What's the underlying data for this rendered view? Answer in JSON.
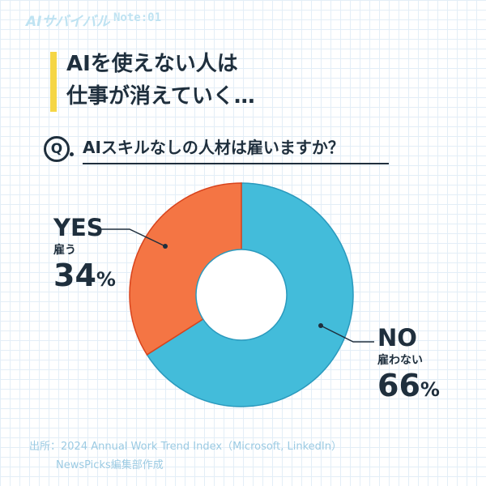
{
  "brand": {
    "name": "AIサバイバル",
    "note": "Note:01"
  },
  "title": {
    "line1": "AIを使えない人は",
    "line2": "仕事が消えていく…"
  },
  "question": {
    "badge": "Q",
    "text": "AIスキルなしの人材は雇いますか？"
  },
  "colors": {
    "yes": "#f47544",
    "no": "#43bcda",
    "accent": "#f5d645",
    "text": "#1f2f3d"
  },
  "chart_data": {
    "type": "pie",
    "series": [
      {
        "name": "YES",
        "sub": "雇う",
        "value": 34,
        "label": "34",
        "unit": "%"
      },
      {
        "name": "NO",
        "sub": "雇わない",
        "value": 66,
        "label": "66",
        "unit": "%"
      }
    ]
  },
  "source": {
    "line1": "出所：2024 Annual Work Trend Index（Microsoft, LinkedIn）",
    "line2": "NewsPicks編集部作成"
  }
}
